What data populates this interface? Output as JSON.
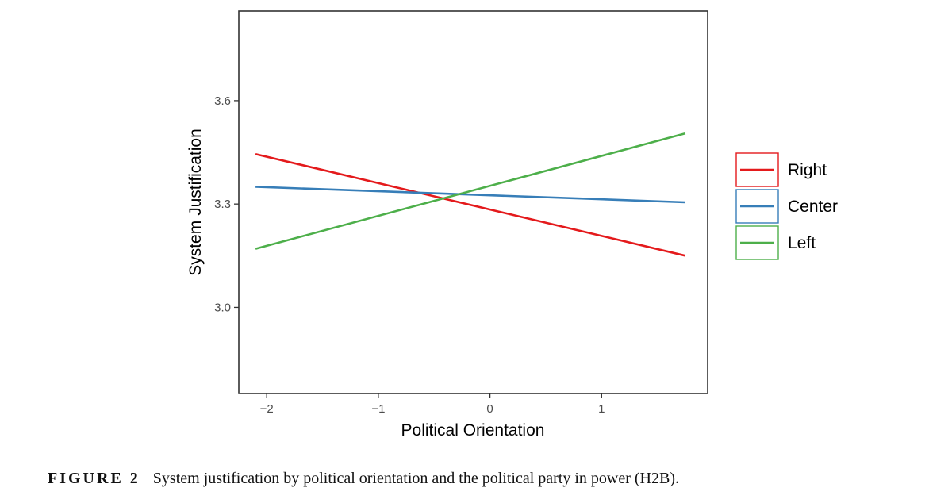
{
  "chart_data": {
    "type": "line",
    "xlabel": "Political Orientation",
    "ylabel": "System Justification",
    "xlim": [
      -2.25,
      1.95
    ],
    "ylim": [
      2.75,
      3.86
    ],
    "x_ticks": [
      -2,
      -1,
      0,
      1
    ],
    "x_tick_labels": [
      "−2",
      "−1",
      "0",
      "1"
    ],
    "y_ticks": [
      3.0,
      3.3,
      3.6
    ],
    "y_tick_labels": [
      "3.0",
      "3.3",
      "3.6"
    ],
    "grid": false,
    "legend_position": "right",
    "series": [
      {
        "name": "Right",
        "color": "#e41a1c",
        "x": [
          -2.1,
          1.75
        ],
        "y": [
          3.445,
          3.15
        ]
      },
      {
        "name": "Center",
        "color": "#377eb8",
        "x": [
          -2.1,
          1.75
        ],
        "y": [
          3.35,
          3.305
        ]
      },
      {
        "name": "Left",
        "color": "#4daf4a",
        "x": [
          -2.1,
          1.75
        ],
        "y": [
          3.17,
          3.505
        ]
      }
    ]
  },
  "caption": {
    "label": "FIGURE 2",
    "text": "System justification by political orientation and the political party in power (H2B)."
  }
}
